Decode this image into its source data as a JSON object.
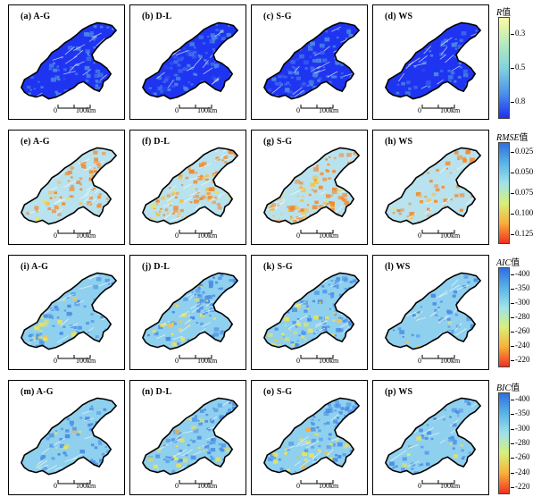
{
  "rows": [
    {
      "panels": [
        {
          "label": "(a) A-G"
        },
        {
          "label": "(b) D-L"
        },
        {
          "label": "(c) S-G"
        },
        {
          "label": "(d) WS"
        }
      ],
      "legend": {
        "title_italic": "R",
        "title_suffix": "值",
        "ticks": [
          "0.3",
          "0.5",
          "0.8"
        ],
        "colors": [
          "#fbfba0",
          "#b7ebbd",
          "#80d4dc",
          "#4c93ea",
          "#1d2ff0"
        ]
      },
      "shading": {
        "base": "#1f34f0",
        "patches": [
          "#3b64ee",
          "#2a4cee",
          "#4a86e8"
        ]
      }
    },
    {
      "panels": [
        {
          "label": "(e) A-G"
        },
        {
          "label": "(f) D-L"
        },
        {
          "label": "(g) S-G"
        },
        {
          "label": "(h) WS"
        }
      ],
      "legend": {
        "title_italic": "RMSE",
        "title_suffix": "值",
        "ticks": [
          "0.025",
          "0.050",
          "0.075",
          "0.100",
          "0.125"
        ],
        "colors": [
          "#2f6ee0",
          "#58b4e8",
          "#9fe3ea",
          "#d7f07a",
          "#f8b03a",
          "#f23020"
        ]
      },
      "shading": {
        "base": "#b8e2ee",
        "patches": [
          "#f5c04a",
          "#e8e35c",
          "#f28a30"
        ]
      }
    },
    {
      "panels": [
        {
          "label": "(i) A-G"
        },
        {
          "label": "(j) D-L"
        },
        {
          "label": "(k) S-G"
        },
        {
          "label": "(l) WS"
        }
      ],
      "legend": {
        "title_italic": "AIC",
        "title_suffix": "值",
        "ticks": [
          "-400",
          "-350",
          "-300",
          "-280",
          "-260",
          "-240",
          "-220"
        ],
        "colors": [
          "#2f6ee0",
          "#58b4e8",
          "#9fe3ea",
          "#d7f07a",
          "#f8b03a",
          "#f23020"
        ]
      },
      "shading": {
        "base": "#8fd0ee",
        "patches": [
          "#e9e35a",
          "#f7c24a",
          "#4a8ee6"
        ]
      }
    },
    {
      "panels": [
        {
          "label": "(m) A-G"
        },
        {
          "label": "(n) D-L"
        },
        {
          "label": "(o) S-G"
        },
        {
          "label": "(p) WS"
        }
      ],
      "legend": {
        "title_italic": "BIC",
        "title_suffix": "值",
        "ticks": [
          "-400",
          "-350",
          "-300",
          "-280",
          "-260",
          "-240",
          "-220"
        ],
        "colors": [
          "#2f6ee0",
          "#58b4e8",
          "#9fe3ea",
          "#d7f07a",
          "#f8b03a",
          "#f23020"
        ]
      },
      "shading": {
        "base": "#8fd0ee",
        "patches": [
          "#e9e35a",
          "#f7b040",
          "#4a8ee6"
        ]
      }
    }
  ],
  "scalebar": {
    "zero": "0",
    "distance": "100km"
  }
}
